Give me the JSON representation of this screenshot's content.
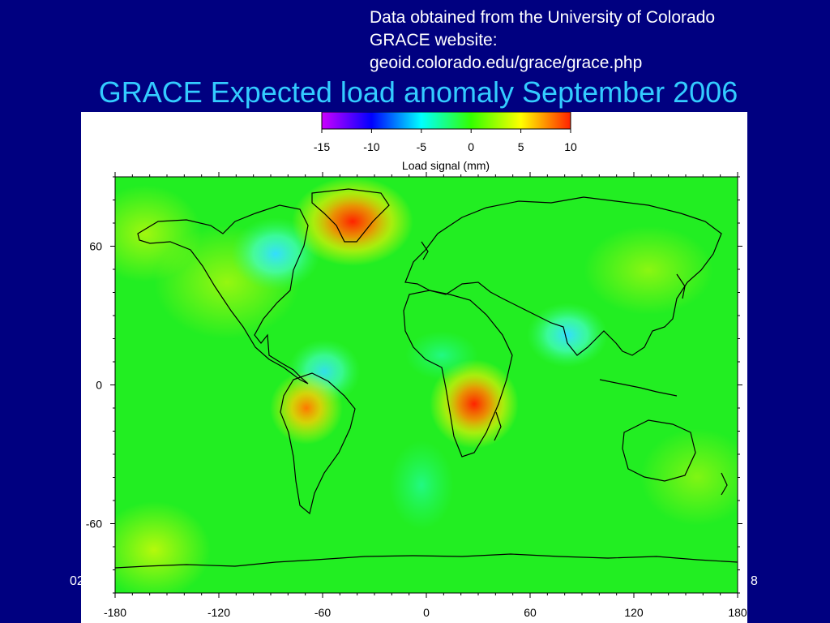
{
  "credit": {
    "line1": "Data obtained from the University of Colorado",
    "line2": "GRACE website:",
    "line3": "geoid.colorado.edu/grace/grace.php"
  },
  "slide_title": "GRACE Expected load anomaly September 2006",
  "colorbar": {
    "label": "Load signal (mm)",
    "range": [
      -15,
      10
    ],
    "ticks": [
      "-15",
      "-10",
      "-5",
      "0",
      "5",
      "10"
    ],
    "stops": [
      {
        "value": -15,
        "color": "#cc00ff"
      },
      {
        "value": -10,
        "color": "#0000ff"
      },
      {
        "value": -5,
        "color": "#00ffff"
      },
      {
        "value": 0,
        "color": "#33ff00"
      },
      {
        "value": 5,
        "color": "#ffff00"
      },
      {
        "value": 10,
        "color": "#ff2200"
      }
    ]
  },
  "map": {
    "x_ticks": [
      "-180",
      "-120",
      "-60",
      "0",
      "60",
      "120",
      "180"
    ],
    "y_ticks": [
      "60",
      "0",
      "-60"
    ],
    "lon_range": [
      -180,
      180
    ],
    "lat_range": [
      -90,
      90
    ],
    "background_color": "#22ee22"
  },
  "footer": {
    "left": "02",
    "right": "8"
  }
}
